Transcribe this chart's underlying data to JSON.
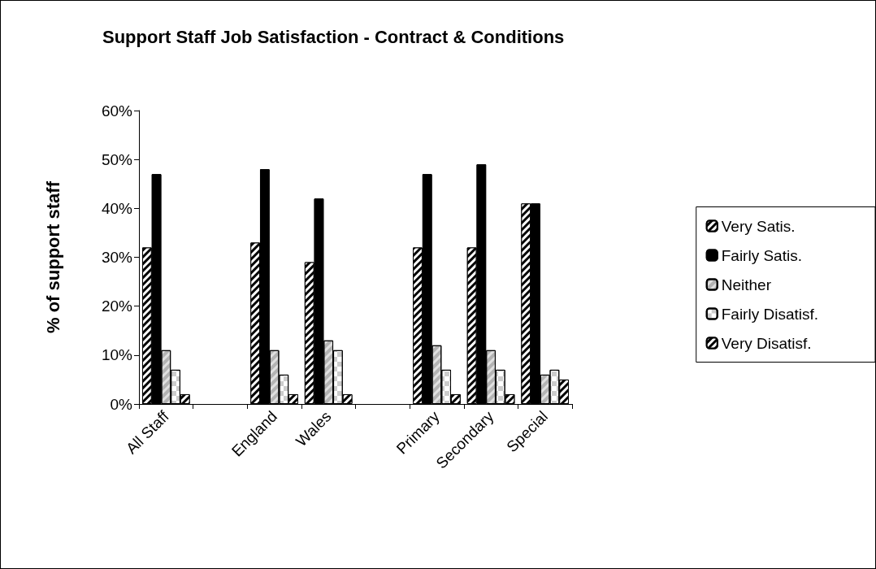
{
  "chart_data": {
    "type": "bar",
    "title": "Support Staff Job Satisfaction - Contract & Conditions",
    "ylabel": "% of support staff",
    "categories": [
      "All Staff",
      null,
      "England",
      "Wales",
      null,
      "Primary",
      "Secondary",
      "Special"
    ],
    "series": [
      {
        "name": "Very Satis.",
        "color": "#000000",
        "values": [
          32,
          null,
          33,
          29,
          null,
          32,
          32,
          41
        ]
      },
      {
        "name": "Fairly Satis.",
        "color": "#000000",
        "values": [
          47,
          null,
          48,
          42,
          null,
          47,
          49,
          41
        ]
      },
      {
        "name": "Neither",
        "color": "#e0e0e0",
        "values": [
          11,
          null,
          11,
          13,
          null,
          12,
          11,
          6
        ]
      },
      {
        "name": "Fairly Disatisf.",
        "color": "#ffffff",
        "values": [
          7,
          null,
          6,
          11,
          null,
          7,
          7,
          7
        ]
      },
      {
        "name": "Very Disatisf.",
        "color": "#000000",
        "values": [
          2,
          null,
          2,
          2,
          null,
          2,
          2,
          5
        ]
      }
    ],
    "ylim": [
      0,
      60
    ],
    "yticks": [
      {
        "value": 0,
        "label": "0%"
      },
      {
        "value": 10,
        "label": "10%"
      },
      {
        "value": 20,
        "label": "20%"
      },
      {
        "value": 30,
        "label": "30%"
      },
      {
        "value": 40,
        "label": "40%"
      },
      {
        "value": 50,
        "label": "50%"
      },
      {
        "value": 60,
        "label": "60%"
      }
    ],
    "grid": false,
    "legend": "right"
  }
}
